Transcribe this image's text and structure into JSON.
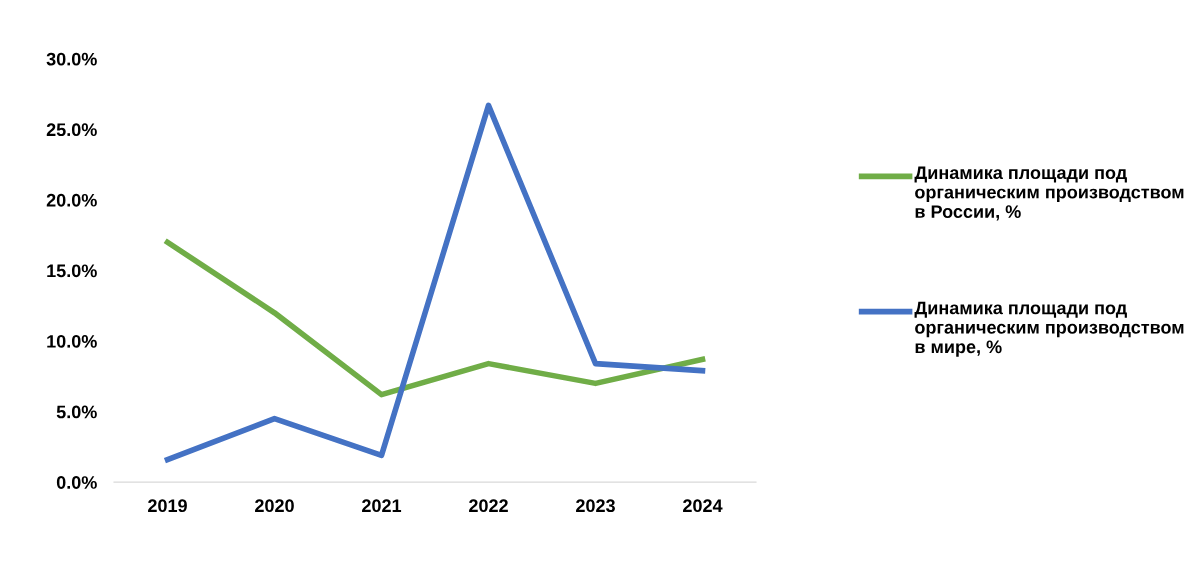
{
  "chart_data": {
    "type": "line",
    "categories": [
      "2019",
      "2020",
      "2021",
      "2022",
      "2023",
      "2024"
    ],
    "series": [
      {
        "name": "Динамика площади под органическим производством в России, %",
        "color": "#70ad47",
        "values": [
          17.0,
          12.0,
          6.2,
          8.4,
          7.0,
          8.7
        ]
      },
      {
        "name": "Динамика площади под органическим производством в мире, %",
        "color": "#4472c4",
        "values": [
          1.6,
          4.5,
          1.9,
          26.7,
          8.4,
          7.9
        ]
      }
    ],
    "ylim": [
      0,
      30
    ],
    "yticks": [
      {
        "value": 0,
        "label": "0.0%"
      },
      {
        "value": 5,
        "label": "5.0%"
      },
      {
        "value": 10,
        "label": "10.0%"
      },
      {
        "value": 15,
        "label": "15.0%"
      },
      {
        "value": 20,
        "label": "20.0%"
      },
      {
        "value": 25,
        "label": "25.0%"
      },
      {
        "value": 30,
        "label": "30.0%"
      }
    ],
    "grid": false,
    "legend": "right",
    "marker": "none",
    "line_style": "solid"
  }
}
